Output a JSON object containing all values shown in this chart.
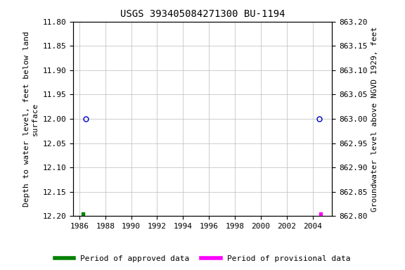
{
  "title": "USGS 393405084271300 BU-1194",
  "ylabel_left": "Depth to water level, feet below land\nsurface",
  "ylabel_right": "Groundwater level above NGVD 1929, feet",
  "ylim_left_top": 11.8,
  "ylim_left_bottom": 12.2,
  "ylim_right_top": 863.2,
  "ylim_right_bottom": 862.8,
  "xlim": [
    1985.5,
    2005.5
  ],
  "xticks": [
    1986,
    1988,
    1990,
    1992,
    1994,
    1996,
    1998,
    2000,
    2002,
    2004
  ],
  "yticks_left": [
    11.8,
    11.85,
    11.9,
    11.95,
    12.0,
    12.05,
    12.1,
    12.15,
    12.2
  ],
  "yticks_right": [
    863.2,
    863.15,
    863.1,
    863.05,
    863.0,
    862.95,
    862.9,
    862.85,
    862.8
  ],
  "circle_points_x": [
    1986.5,
    2004.5
  ],
  "circle_points_y": [
    12.0,
    12.0
  ],
  "square_green_x": 1986.3,
  "square_green_y": 12.195,
  "square_magenta_x": 2004.6,
  "square_magenta_y": 12.195,
  "circle_color": "#0000CC",
  "square_green_color": "#008000",
  "square_magenta_color": "#FF00FF",
  "background_color": "#ffffff",
  "grid_color": "#bbbbbb",
  "legend_approved": "Period of approved data",
  "legend_provisional": "Period of provisional data",
  "title_fontsize": 10,
  "label_fontsize": 8,
  "tick_fontsize": 8
}
